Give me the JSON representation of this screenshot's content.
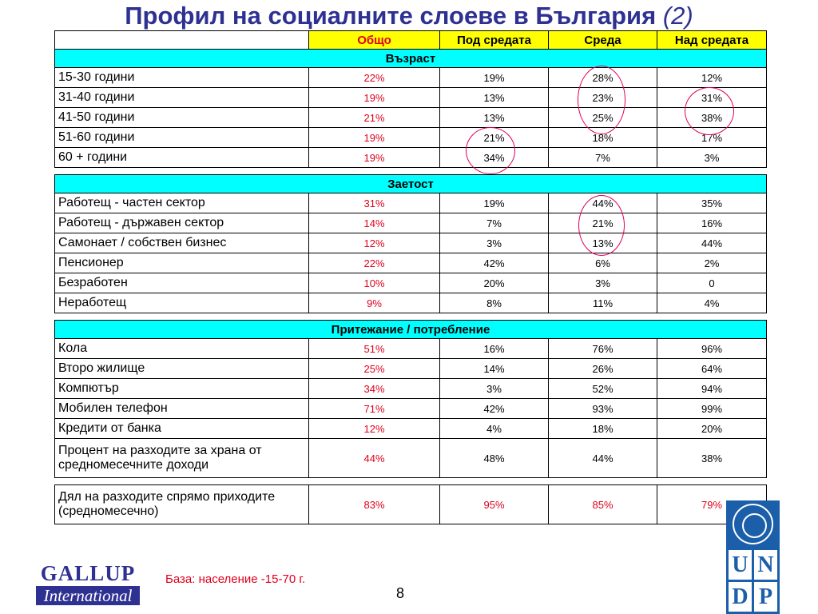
{
  "title": {
    "main": "Профил на социалните слоеве в България",
    "suffix": "(2)"
  },
  "header": {
    "c1": "Общо",
    "c2": "Под средата",
    "c3": "Среда",
    "c4": "Над средата"
  },
  "sections": [
    {
      "name": "Възраст",
      "rows": [
        {
          "label": "15-30 години",
          "v": [
            "22%",
            "19%",
            "28%",
            "12%"
          ]
        },
        {
          "label": "31-40 години",
          "v": [
            "19%",
            "13%",
            "23%",
            "31%"
          ]
        },
        {
          "label": "41-50 години",
          "v": [
            "21%",
            "13%",
            "25%",
            "38%"
          ]
        },
        {
          "label": "51-60 години",
          "v": [
            "19%",
            "21%",
            "18%",
            "17%"
          ]
        },
        {
          "label": "60 + години",
          "v": [
            "19%",
            "34%",
            "7%",
            "3%"
          ]
        }
      ]
    },
    {
      "name": "Заетост",
      "rows": [
        {
          "label": "Работещ  - частен сектор",
          "v": [
            "31%",
            "19%",
            "44%",
            "35%"
          ]
        },
        {
          "label": "Работещ  - държавен сектор",
          "v": [
            "14%",
            "7%",
            "21%",
            "16%"
          ]
        },
        {
          "label": "Самонает / собствен бизнес",
          "v": [
            "12%",
            "3%",
            "13%",
            "44%"
          ]
        },
        {
          "label": "Пенсионер",
          "v": [
            "22%",
            "42%",
            "6%",
            "2%"
          ]
        },
        {
          "label": "Безработен",
          "v": [
            "10%",
            "20%",
            "3%",
            "0"
          ]
        },
        {
          "label": "Неработещ",
          "v": [
            "9%",
            "8%",
            "11%",
            "4%"
          ]
        }
      ]
    },
    {
      "name": "Притежание / потребление",
      "rows": [
        {
          "label": "Кола",
          "v": [
            "51%",
            "16%",
            "76%",
            "96%"
          ]
        },
        {
          "label": "Второ жилище",
          "v": [
            "25%",
            "14%",
            "26%",
            "64%"
          ]
        },
        {
          "label": "Компютър",
          "v": [
            "34%",
            "3%",
            "52%",
            "94%"
          ]
        },
        {
          "label": "Мобилен телефон",
          "v": [
            "71%",
            "42%",
            "93%",
            "99%"
          ]
        },
        {
          "label": "Кредити от банка",
          "v": [
            "12%",
            "4%",
            "18%",
            "20%"
          ]
        },
        {
          "label": "Процент на разходите за храна от средномесечните доходи",
          "v": [
            "44%",
            "48%",
            "44%",
            "38%"
          ]
        }
      ]
    }
  ],
  "final_row": {
    "label": "Дял на разходите спрямо приходите (средномесечно)",
    "v": [
      "83%",
      "95%",
      "85%",
      "79%"
    ]
  },
  "footer": {
    "base": "База: население -15-70 г.",
    "page": "8",
    "gallup_1": "GALLUP",
    "gallup_2": "International",
    "undp": [
      "U",
      "N",
      "D",
      "P"
    ]
  },
  "colors": {
    "title": "#2E3192",
    "header_bg": "#FFFF00",
    "section_bg": "#00FFFF",
    "red": "#E0001B",
    "circle": "#E0005A",
    "undp": "#1B5FAA"
  }
}
